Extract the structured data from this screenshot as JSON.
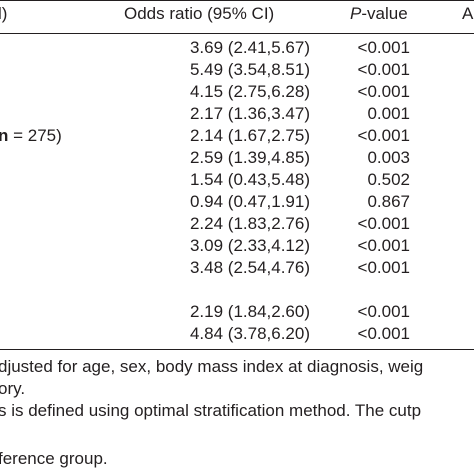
{
  "header": {
    "col_left": "l)",
    "col_or": "Odds ratio (95% CI)",
    "col_p_italic": "P",
    "col_p_rest": "-value",
    "col_right": "A"
  },
  "row_label": {
    "prefix": "n",
    "rest": " = 275)"
  },
  "rows": [
    {
      "or": "3.69 (2.41,5.67)",
      "p": "<0.001"
    },
    {
      "or": "5.49 (3.54,8.51)",
      "p": "<0.001"
    },
    {
      "or": "4.15 (2.75,6.28)",
      "p": "<0.001"
    },
    {
      "or": "2.17 (1.36,3.47)",
      "p": "0.001"
    },
    {
      "or": "2.14 (1.67,2.75)",
      "p": "<0.001"
    },
    {
      "or": "2.59 (1.39,4.85)",
      "p": "0.003"
    },
    {
      "or": "1.54 (0.43,5.48)",
      "p": "0.502"
    },
    {
      "or": "0.94 (0.47,1.91)",
      "p": "0.867"
    },
    {
      "or": "2.24 (1.83,2.76)",
      "p": "<0.001"
    },
    {
      "or": "3.09 (2.33,4.12)",
      "p": "<0.001"
    },
    {
      "or": "3.48 (2.54,4.76)",
      "p": "<0.001"
    },
    {
      "or": "2.19 (1.84,2.60)",
      "p": "<0.001"
    },
    {
      "or": "4.84 (3.78,6.20)",
      "p": "<0.001"
    }
  ],
  "notes": [
    "djusted for age, sex, body mass index at diagnosis, weig",
    "ory.",
    "s is defined using optimal stratification method. The cutp",
    "ference group."
  ]
}
